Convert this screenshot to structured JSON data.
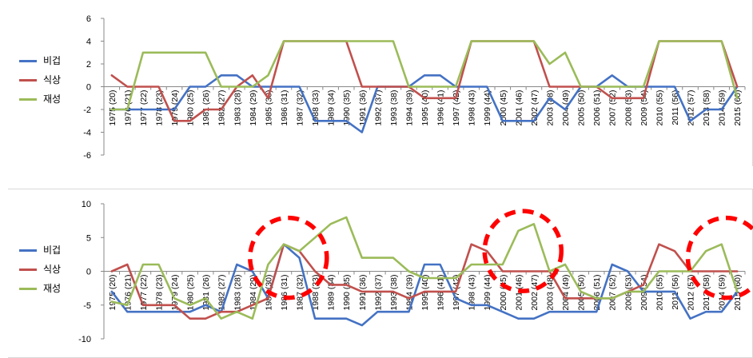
{
  "chart_data": [
    {
      "type": "line",
      "ylim": [
        -6,
        6
      ],
      "yticks": [
        6,
        4,
        2,
        0,
        -2,
        -4,
        -6
      ],
      "categories": [
        "1975 (20)",
        "1976 (21)",
        "1977 (22)",
        "1978 (23)",
        "1979 (24)",
        "1980 (25)",
        "1981 (26)",
        "1982 (27)",
        "1983 (28)",
        "1984 (29)",
        "1985 (30)",
        "1986 (31)",
        "1987 (32)",
        "1988 (33)",
        "1989 (34)",
        "1990 (35)",
        "1991 (36)",
        "1992 (37)",
        "1993 (38)",
        "1994 (39)",
        "1995 (40)",
        "1996 (41)",
        "1997 (42)",
        "1998 (43)",
        "1999 (44)",
        "2000 (45)",
        "2001 (46)",
        "2002 (47)",
        "2003 (48)",
        "2004 (49)",
        "2005 (50)",
        "2006 (51)",
        "2007 (52)",
        "2008 (53)",
        "2009 (54)",
        "2010 (55)",
        "2011 (56)",
        "2012 (57)",
        "2013 (58)",
        "2014 (59)",
        "2015 (60)"
      ],
      "series": [
        {
          "name": "비겁",
          "color": "#4472c4",
          "values": [
            -2,
            -2,
            -2,
            -2,
            -2,
            0,
            0,
            1,
            1,
            0,
            0,
            0,
            0,
            -3,
            -3,
            -3,
            -4,
            0,
            0,
            0,
            1,
            1,
            0,
            0,
            0,
            -3,
            -3,
            -3,
            -1,
            -2,
            0,
            0,
            1,
            0,
            0,
            0,
            0,
            -3,
            -2,
            -2,
            0
          ]
        },
        {
          "name": "식상",
          "color": "#c0504d",
          "values": [
            1,
            0,
            0,
            0,
            -3,
            -3,
            -2,
            -2,
            0,
            1,
            -1,
            4,
            4,
            4,
            4,
            4,
            0,
            0,
            0,
            0,
            -1,
            -1,
            -1,
            4,
            4,
            4,
            4,
            4,
            0,
            0,
            0,
            0,
            -1,
            -1,
            -1,
            4,
            4,
            4,
            4,
            4,
            0
          ]
        },
        {
          "name": "재성",
          "color": "#9bbb59",
          "values": [
            -2,
            -2,
            3,
            3,
            3,
            3,
            3,
            0,
            0,
            0,
            1,
            4,
            4,
            4,
            4,
            4,
            4,
            4,
            4,
            0,
            0,
            0,
            0,
            4,
            4,
            4,
            4,
            4,
            2,
            3,
            0,
            0,
            0,
            0,
            0,
            4,
            4,
            4,
            4,
            4,
            -1
          ]
        }
      ]
    },
    {
      "type": "line",
      "ylim": [
        -10,
        10
      ],
      "yticks": [
        10,
        5,
        0,
        -5,
        -10
      ],
      "categories": [
        "1975 (20)",
        "1976 (21)",
        "1977 (22)",
        "1978 (23)",
        "1979 (24)",
        "1980 (25)",
        "1981 (26)",
        "1982 (27)",
        "1983 (28)",
        "1984 (29)",
        "1985 (30)",
        "1986 (31)",
        "1987 (32)",
        "1988 (33)",
        "1989 (34)",
        "1990 (35)",
        "1991 (36)",
        "1992 (37)",
        "1993 (38)",
        "1994 (39)",
        "1995 (40)",
        "1996 (41)",
        "1997 (42)",
        "1998 (43)",
        "1999 (44)",
        "2000 (45)",
        "2001 (46)",
        "2002 (47)",
        "2003 (48)",
        "2004 (49)",
        "2005 (50)",
        "2006 (51)",
        "2007 (52)",
        "2008 (53)",
        "2009 (54)",
        "2010 (55)",
        "2011 (56)",
        "2012 (57)",
        "2013 (58)",
        "2014 (59)",
        "2015 (60)"
      ],
      "series": [
        {
          "name": "비겁",
          "color": "#4472c4",
          "values": [
            -3,
            -6,
            -6,
            -6,
            -6,
            -6,
            -5,
            -6,
            1,
            0,
            -4,
            4,
            2,
            -7,
            -7,
            -7,
            -8,
            -6,
            -6,
            -6,
            1,
            1,
            -4,
            -5,
            -5,
            -6,
            -7,
            -7,
            -6,
            -6,
            -6,
            -6,
            1,
            0,
            -3,
            -3,
            -3,
            -7,
            -6,
            -6,
            -3
          ]
        },
        {
          "name": "식상",
          "color": "#c0504d",
          "values": [
            0,
            1,
            -5,
            -5,
            -5,
            -7,
            -7,
            -6,
            -6,
            -5,
            -4,
            4,
            3,
            0,
            -2,
            -2,
            -3,
            -3,
            -3,
            -4,
            -3,
            -3,
            -3,
            4,
            3,
            0,
            0,
            0,
            0,
            -4,
            -4,
            -4,
            -4,
            -3,
            -2,
            4,
            3,
            0,
            0,
            0,
            0
          ]
        },
        {
          "name": "재성",
          "color": "#9bbb59",
          "values": [
            -4.5,
            -5,
            1,
            1,
            -4,
            -5,
            -4,
            -7,
            -6,
            -7,
            1,
            4,
            3,
            5,
            7,
            8,
            2,
            2,
            2,
            0,
            -1,
            -1,
            -1,
            1,
            1,
            1,
            6,
            7,
            0,
            1,
            -3,
            -4,
            -4,
            -3,
            -3,
            0,
            0,
            0,
            3,
            4,
            -3
          ]
        }
      ]
    }
  ],
  "legend": [
    {
      "name": "비겁",
      "color": "#4472c4"
    },
    {
      "name": "식상",
      "color": "#c0504d"
    },
    {
      "name": "재성",
      "color": "#9bbb59"
    }
  ],
  "highlight_color": "#ff0000",
  "highlights": [
    {
      "label_from": "1985 (30)",
      "label_to": "1987 (32)",
      "center_year": "1986 (31)",
      "center_value": 2
    },
    {
      "label_from": "2000 (45)",
      "label_to": "2003 (48)",
      "center_year": "2001 (46)",
      "center_value": 3
    },
    {
      "label_from": "2013 (58)",
      "label_to": "2015 (60)",
      "center_year": "2014 (59)",
      "center_value": 2
    }
  ]
}
